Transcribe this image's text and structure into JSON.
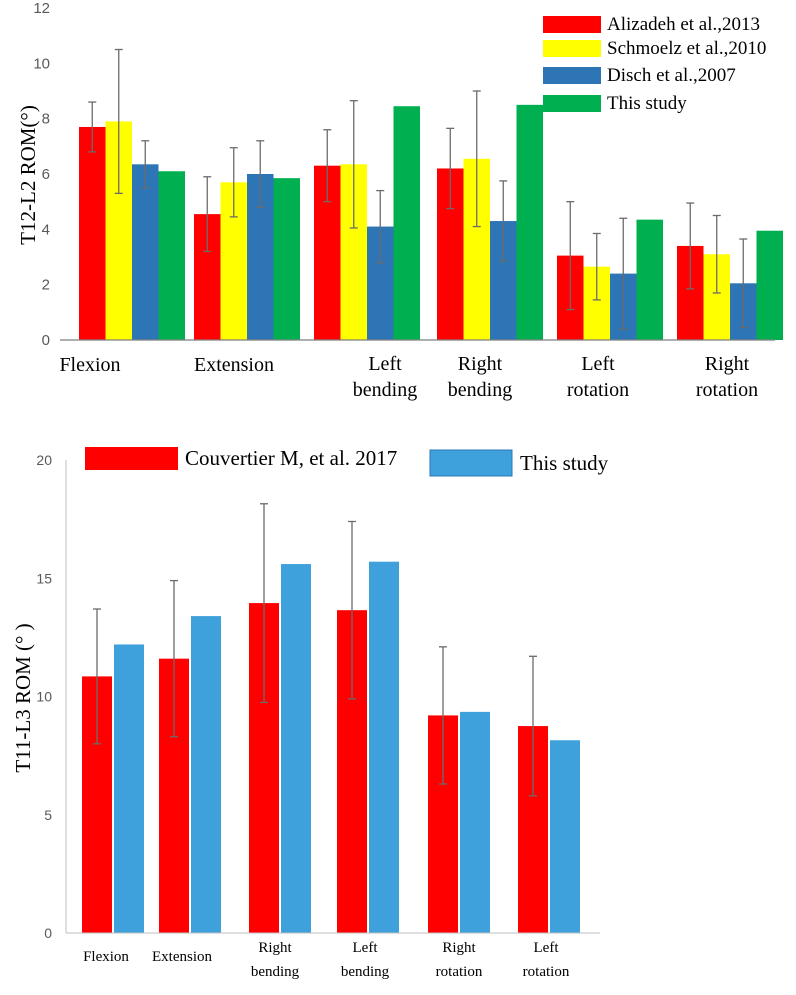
{
  "chart_data": [
    {
      "type": "bar",
      "ylabel": "T12-L2 ROM(°)",
      "ylim": [
        0,
        12
      ],
      "yticks": [
        "0",
        "2",
        "4",
        "6",
        "8",
        "10",
        "12"
      ],
      "categories": [
        [
          "Flexion"
        ],
        [
          "Extension"
        ],
        [
          "Left",
          "bending"
        ],
        [
          "Right",
          "bending"
        ],
        [
          "Left",
          "rotation"
        ],
        [
          "Right",
          "rotation"
        ]
      ],
      "series": [
        {
          "name": "Alizadeh et al.,2013",
          "color": "#ff0000",
          "values": [
            7.7,
            4.55,
            6.3,
            6.2,
            3.05,
            3.4
          ],
          "errors": [
            0.9,
            1.35,
            1.3,
            1.45,
            1.95,
            1.55
          ]
        },
        {
          "name": "Schmoelz et al.,2010",
          "color": "#ffff00",
          "values": [
            7.9,
            5.7,
            6.35,
            6.55,
            2.65,
            3.1
          ],
          "errors": [
            2.6,
            1.25,
            2.3,
            2.45,
            1.2,
            1.4
          ]
        },
        {
          "name": "Disch et al.,2007",
          "color": "#2e75b6",
          "values": [
            6.35,
            6.0,
            4.1,
            4.3,
            2.4,
            2.05
          ],
          "errors": [
            0.85,
            1.2,
            1.3,
            1.45,
            2.0,
            1.6
          ]
        },
        {
          "name": "This study",
          "color": "#00b050",
          "values": [
            6.1,
            5.85,
            8.45,
            8.5,
            4.35,
            3.95
          ],
          "errors": null
        }
      ],
      "legend": "top-right"
    },
    {
      "type": "bar",
      "ylabel": "T11-L3 ROM (° )",
      "ylim": [
        0,
        20
      ],
      "yticks": [
        "0",
        "5",
        "10",
        "15",
        "20"
      ],
      "categories": [
        [
          "Flexion"
        ],
        [
          "Extension"
        ],
        [
          "Right",
          "bending"
        ],
        [
          "Left",
          "bending"
        ],
        [
          "Right",
          "rotation"
        ],
        [
          "Left",
          "rotation"
        ]
      ],
      "series": [
        {
          "name": "Couvertier M, et al. 2017",
          "color": "#ff0000",
          "values": [
            10.85,
            11.6,
            13.95,
            13.65,
            9.2,
            8.75
          ],
          "errors": [
            2.85,
            3.3,
            4.2,
            3.75,
            2.9,
            2.95
          ]
        },
        {
          "name": "This study",
          "color": "#3ea1dc",
          "values": [
            12.2,
            13.4,
            15.6,
            15.7,
            9.35,
            8.15
          ],
          "errors": null
        }
      ],
      "legend": "top"
    }
  ]
}
